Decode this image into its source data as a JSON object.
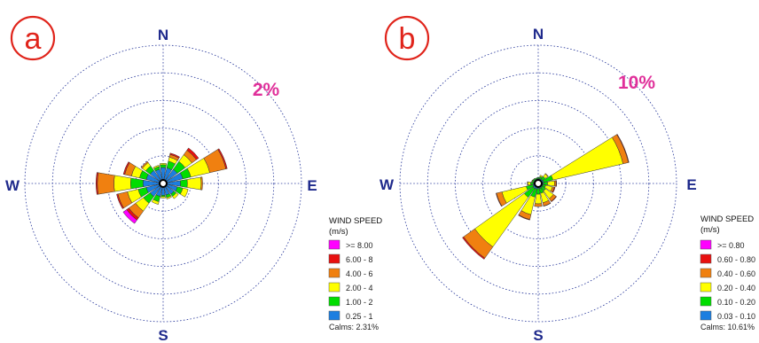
{
  "chart_data": [
    {
      "type": "wind-rose",
      "panel_label": "a",
      "directions": [
        "N",
        "NNE",
        "NE",
        "ENE",
        "E",
        "ESE",
        "SE",
        "SSE",
        "S",
        "SSW",
        "SW",
        "WSW",
        "W",
        "WNW",
        "NW",
        "NNW"
      ],
      "compass": {
        "n": "N",
        "e": "E",
        "s": "S",
        "w": "W"
      },
      "ring_percent_label": "2%",
      "ring_step_percent": 2,
      "ring_count": 5,
      "legend": {
        "title": "WIND SPEED",
        "unit": "(m/s)",
        "bins": [
          ">= 8.00",
          "6.00 - 8",
          "4.00 - 6",
          "2.00 - 4",
          "1.00 - 2",
          "0.25 - 1"
        ],
        "calms": "Calms: 2.31%"
      },
      "colors": [
        "#ff00ff",
        "#e81010",
        "#f08010",
        "#ffff00",
        "#00dd00",
        "#1c7ee0"
      ],
      "series": [
        {
          "name": "0.25 - 1",
          "values": [
            0.9,
            0.9,
            1.0,
            1.2,
            1.0,
            0.8,
            0.7,
            0.6,
            0.6,
            0.7,
            0.9,
            1.0,
            1.2,
            1.0,
            0.9,
            0.8
          ]
        },
        {
          "name": "1.00 - 2",
          "values": [
            0.2,
            0.5,
            0.7,
            0.6,
            0.5,
            0.4,
            0.2,
            0.2,
            0.1,
            0.4,
            0.6,
            0.6,
            0.9,
            0.5,
            0.4,
            0.2
          ]
        },
        {
          "name": "2.00 - 4",
          "values": [
            0.1,
            0.3,
            0.6,
            1.4,
            1.0,
            0.4,
            0.2,
            0.1,
            0.1,
            0.2,
            0.7,
            0.8,
            1.2,
            0.6,
            0.3,
            0.1
          ]
        },
        {
          "name": "4.00 - 6",
          "values": [
            0.0,
            0.2,
            0.4,
            1.2,
            0.1,
            0.0,
            0.0,
            0.0,
            0.0,
            0.0,
            0.6,
            0.7,
            1.2,
            0.5,
            0.1,
            0.0
          ]
        },
        {
          "name": "6.00 - 8",
          "values": [
            0.0,
            0.1,
            0.2,
            0.1,
            0.0,
            0.0,
            0.0,
            0.0,
            0.0,
            0.0,
            0.2,
            0.1,
            0.1,
            0.1,
            0.0,
            0.0
          ]
        },
        {
          "name": ">= 8.00",
          "values": [
            0.0,
            0.0,
            0.0,
            0.0,
            0.0,
            0.0,
            0.0,
            0.0,
            0.0,
            0.0,
            0.3,
            0.0,
            0.0,
            0.0,
            0.0,
            0.0
          ]
        }
      ]
    },
    {
      "type": "wind-rose",
      "panel_label": "b",
      "directions": [
        "N",
        "NNE",
        "NE",
        "ENE",
        "E",
        "ESE",
        "SE",
        "SSE",
        "S",
        "SSW",
        "SW",
        "WSW",
        "W",
        "WNW",
        "NW",
        "NNW"
      ],
      "compass": {
        "n": "N",
        "e": "E",
        "s": "S",
        "w": "W"
      },
      "ring_percent_label": "10%",
      "ring_step_percent": 10,
      "ring_count": 5,
      "legend": {
        "title": "WIND SPEED",
        "unit": "(m/s)",
        "bins": [
          ">= 0.80",
          "0.60 - 0.80",
          "0.40 - 0.60",
          "0.20 - 0.40",
          "0.10 - 0.20",
          "0.03 - 0.10"
        ],
        "calms": "Calms: 10.61%"
      },
      "colors": [
        "#ff00ff",
        "#e81010",
        "#f08010",
        "#ffff00",
        "#00dd00",
        "#1c7ee0"
      ],
      "series": [
        {
          "name": "0.03 - 0.10",
          "values": [
            0.5,
            0.5,
            0.6,
            0.7,
            0.6,
            0.5,
            0.5,
            0.6,
            0.6,
            0.8,
            0.9,
            0.7,
            0.5,
            0.4,
            0.4,
            0.4
          ]
        },
        {
          "name": "0.10 - 0.20",
          "values": [
            0.4,
            0.8,
            1.2,
            3.5,
            1.5,
            1.0,
            1.5,
            1.8,
            2.0,
            3.0,
            4.0,
            2.5,
            1.0,
            0.6,
            0.5,
            0.4
          ]
        },
        {
          "name": "0.20 - 0.40",
          "values": [
            0.0,
            0.5,
            1.2,
            26.0,
            2.5,
            2.5,
            3.5,
            3.5,
            3.5,
            6.5,
            22.0,
            9.0,
            1.0,
            0.2,
            0.1,
            0.0
          ]
        },
        {
          "name": "0.40 - 0.60",
          "values": [
            0.0,
            0.0,
            0.2,
            2.0,
            0.6,
            0.7,
            1.2,
            1.2,
            1.0,
            1.8,
            5.0,
            2.0,
            0.2,
            0.0,
            0.0,
            0.0
          ]
        },
        {
          "name": "0.60 - 0.80",
          "values": [
            0.0,
            0.0,
            0.0,
            0.2,
            0.2,
            0.3,
            0.2,
            0.1,
            0.0,
            0.2,
            0.5,
            0.2,
            0.0,
            0.0,
            0.0,
            0.0
          ]
        },
        {
          "name": ">= 0.80",
          "values": [
            0.0,
            0.0,
            0.0,
            0.0,
            0.0,
            0.0,
            0.0,
            0.0,
            0.0,
            0.0,
            0.0,
            0.0,
            0.0,
            0.0,
            0.0,
            0.0
          ]
        }
      ]
    }
  ]
}
